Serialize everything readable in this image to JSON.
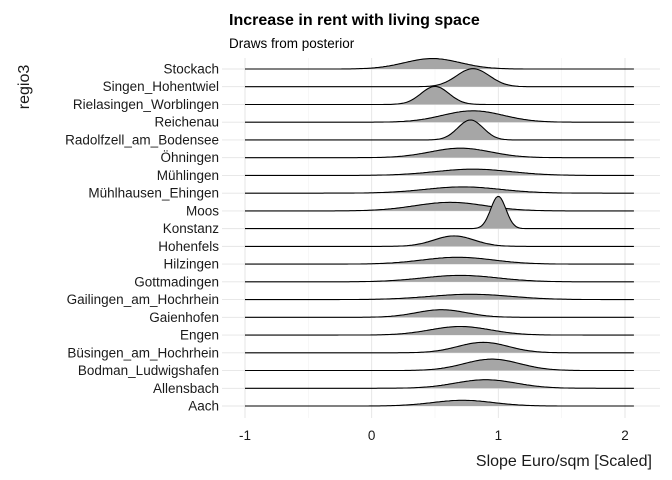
{
  "chart_data": {
    "type": "ridgeline",
    "title": "Increase in rent with living space",
    "subtitle": "Draws from posterior",
    "xlabel": "Slope Euro/sqm [Scaled]",
    "ylabel": "regio3",
    "xlim": [
      -1.0,
      2.1
    ],
    "xticks": [
      -1,
      0,
      1,
      2
    ],
    "grid": true,
    "fill_color": "#a6a6a6",
    "line_color": "#000000",
    "categories": [
      "Aach",
      "Allensbach",
      "Bodman_Ludwigshafen",
      "Büsingen_am_Hochrhein",
      "Engen",
      "Gaienhofen",
      "Gailingen_am_Hochrhein",
      "Gottmadingen",
      "Hilzingen",
      "Hohenfels",
      "Konstanz",
      "Moos",
      "Mühlhausen_Ehingen",
      "Mühlingen",
      "Öhningen",
      "Radolfzell_am_Bodensee",
      "Reichenau",
      "Rielasingen_Worblingen",
      "Singen_Hohentwiel",
      "Stockach"
    ],
    "series": [
      {
        "name": "Aach",
        "mode": 0.72,
        "sd": 0.24,
        "peak": 0.3
      },
      {
        "name": "Allensbach",
        "mode": 0.9,
        "sd": 0.24,
        "peak": 0.45
      },
      {
        "name": "Bodman_Ludwigshafen",
        "mode": 0.95,
        "sd": 0.22,
        "peak": 0.6
      },
      {
        "name": "Büsingen_am_Hochrhein",
        "mode": 0.88,
        "sd": 0.2,
        "peak": 0.55
      },
      {
        "name": "Engen",
        "mode": 0.7,
        "sd": 0.24,
        "peak": 0.45
      },
      {
        "name": "Gaienhofen",
        "mode": 0.55,
        "sd": 0.2,
        "peak": 0.4
      },
      {
        "name": "Gailingen_am_Hochrhein",
        "mode": 0.78,
        "sd": 0.32,
        "peak": 0.28
      },
      {
        "name": "Gottmadingen",
        "mode": 0.7,
        "sd": 0.3,
        "peak": 0.34
      },
      {
        "name": "Hilzingen",
        "mode": 0.68,
        "sd": 0.28,
        "peak": 0.36
      },
      {
        "name": "Hohenfels",
        "mode": 0.65,
        "sd": 0.16,
        "peak": 0.55
      },
      {
        "name": "Konstanz",
        "mode": 1.0,
        "sd": 0.06,
        "peak": 1.7
      },
      {
        "name": "Moos",
        "mode": 0.62,
        "sd": 0.28,
        "peak": 0.45
      },
      {
        "name": "Mühlhausen_Ehingen",
        "mode": 0.72,
        "sd": 0.3,
        "peak": 0.33
      },
      {
        "name": "Mühlingen",
        "mode": 0.8,
        "sd": 0.3,
        "peak": 0.33
      },
      {
        "name": "Öhningen",
        "mode": 0.7,
        "sd": 0.24,
        "peak": 0.5
      },
      {
        "name": "Radolfzell_am_Bodensee",
        "mode": 0.78,
        "sd": 0.1,
        "peak": 1.05
      },
      {
        "name": "Reichenau",
        "mode": 0.8,
        "sd": 0.24,
        "peak": 0.6
      },
      {
        "name": "Rielasingen_Worblingen",
        "mode": 0.5,
        "sd": 0.11,
        "peak": 0.95
      },
      {
        "name": "Singen_Hohentwiel",
        "mode": 0.8,
        "sd": 0.13,
        "peak": 0.95
      },
      {
        "name": "Stockach",
        "mode": 0.48,
        "sd": 0.22,
        "peak": 0.55
      }
    ]
  }
}
